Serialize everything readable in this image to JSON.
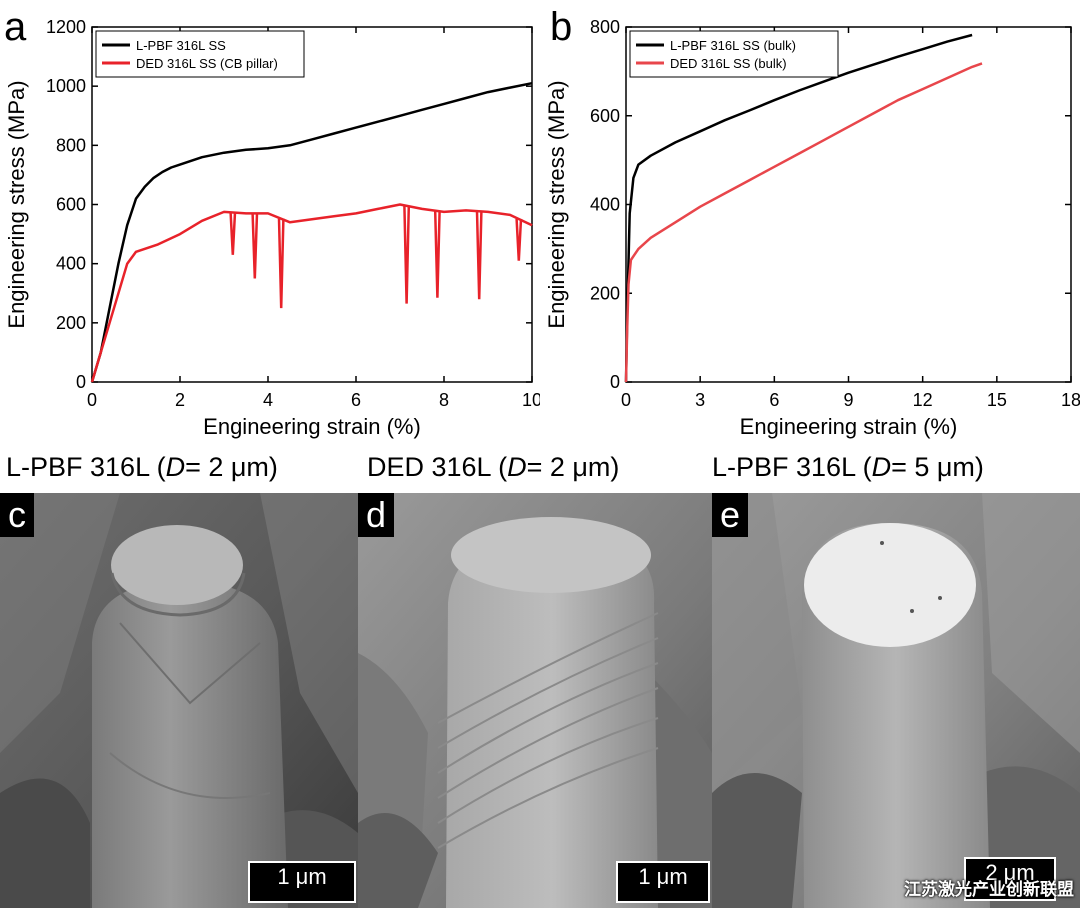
{
  "chart_data": [
    {
      "panel": "a",
      "type": "line",
      "xlabel": "Engineering strain (%)",
      "ylabel": "Engineering stress (MPa)",
      "xlim": [
        0,
        10
      ],
      "ylim": [
        0,
        1200
      ],
      "xticks": [
        0,
        2,
        4,
        6,
        8,
        10
      ],
      "yticks": [
        0,
        200,
        400,
        600,
        800,
        1000,
        1200
      ],
      "legend_position": "top-left",
      "series": [
        {
          "name": "L-PBF 316L SS",
          "color": "#000000",
          "x": [
            0,
            0.2,
            0.4,
            0.6,
            0.8,
            1.0,
            1.2,
            1.4,
            1.6,
            1.8,
            2.0,
            2.5,
            3.0,
            3.5,
            4.0,
            4.5,
            5.0,
            5.5,
            6.0,
            6.5,
            7.0,
            7.5,
            8.0,
            8.5,
            9.0,
            9.5,
            10.0
          ],
          "y": [
            0,
            100,
            250,
            400,
            530,
            620,
            660,
            690,
            710,
            725,
            735,
            760,
            775,
            785,
            790,
            800,
            820,
            840,
            860,
            880,
            900,
            920,
            940,
            960,
            980,
            995,
            1010
          ]
        },
        {
          "name": "DED 316L SS (CB pillar)",
          "color": "#e8222a",
          "x": [
            0,
            0.2,
            0.4,
            0.6,
            0.8,
            1.0,
            1.5,
            2.0,
            2.5,
            3.0,
            3.5,
            4.0,
            4.5,
            5.0,
            5.5,
            6.0,
            6.5,
            7.0,
            7.5,
            8.0,
            8.5,
            9.0,
            9.5,
            10.0
          ],
          "y": [
            0,
            100,
            200,
            300,
            400,
            440,
            465,
            500,
            545,
            575,
            570,
            570,
            540,
            550,
            560,
            570,
            585,
            600,
            585,
            575,
            580,
            575,
            565,
            530
          ],
          "drops": [
            {
              "x": 3.2,
              "y": 430
            },
            {
              "x": 3.7,
              "y": 350
            },
            {
              "x": 4.3,
              "y": 250
            },
            {
              "x": 7.15,
              "y": 265
            },
            {
              "x": 7.85,
              "y": 285
            },
            {
              "x": 8.8,
              "y": 280
            },
            {
              "x": 9.7,
              "y": 410
            }
          ]
        }
      ]
    },
    {
      "panel": "b",
      "type": "line",
      "xlabel": "Engineering strain (%)",
      "ylabel": "Engineering stress (MPa)",
      "xlim": [
        0,
        18
      ],
      "ylim": [
        0,
        800
      ],
      "xticks": [
        0,
        3,
        6,
        9,
        12,
        15,
        18
      ],
      "yticks": [
        0,
        200,
        400,
        600,
        800
      ],
      "legend_position": "top-left",
      "series": [
        {
          "name": "L-PBF 316L SS (bulk)",
          "color": "#000000",
          "x": [
            0,
            0.05,
            0.15,
            0.3,
            0.5,
            1.0,
            2.0,
            3.0,
            4.0,
            5.0,
            6.0,
            7.0,
            8.0,
            9.0,
            10.0,
            11.0,
            12.0,
            13.0,
            14.0
          ],
          "y": [
            0,
            150,
            380,
            460,
            490,
            510,
            540,
            565,
            590,
            612,
            635,
            657,
            677,
            697,
            715,
            733,
            750,
            767,
            782
          ]
        },
        {
          "name": "DED 316L SS (bulk)",
          "color": "#e8464b",
          "x": [
            0,
            0.05,
            0.1,
            0.2,
            0.5,
            1.0,
            2.0,
            3.0,
            4.0,
            5.0,
            6.0,
            7.0,
            8.0,
            9.0,
            10.0,
            11.0,
            12.0,
            13.0,
            14.0,
            14.4
          ],
          "y": [
            0,
            120,
            220,
            275,
            300,
            325,
            360,
            395,
            425,
            455,
            485,
            515,
            545,
            575,
            605,
            635,
            660,
            685,
            710,
            718
          ]
        }
      ]
    }
  ],
  "panel_labels": {
    "a": "a",
    "b": "b",
    "c": "c",
    "d": "d",
    "e": "e"
  },
  "captions": {
    "c": {
      "prefix": "L-PBF 316L (",
      "var": "D",
      "suffix": "= 2 μm)"
    },
    "d": {
      "prefix": "DED 316L (",
      "var": "D",
      "suffix": "= 2 μm)"
    },
    "e": {
      "prefix": "L-PBF 316L (",
      "var": "D",
      "suffix": "= 5 μm)"
    }
  },
  "scale_bars": {
    "c": "1 μm",
    "d": "1 μm",
    "e": "2 μm"
  },
  "watermark": "江苏激光产业创新联盟"
}
